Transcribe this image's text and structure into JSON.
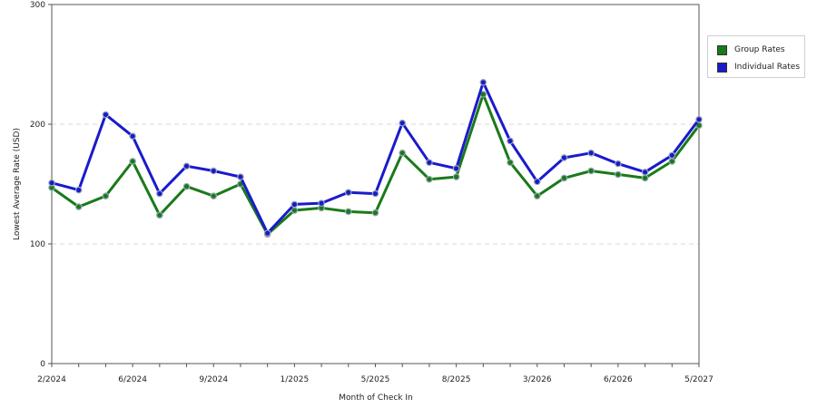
{
  "chart_data": {
    "type": "line",
    "xlabel": "Month of Check In",
    "ylabel": "Lowest Average Rate (USD)",
    "ylim": [
      0,
      300
    ],
    "y_ticks": [
      "0",
      "100",
      "200",
      "300"
    ],
    "x_tick_labels": [
      "2/2024",
      "6/2024",
      "9/2024",
      "1/2025",
      "5/2025",
      "8/2025",
      "3/2026",
      "6/2026",
      "5/2027"
    ],
    "grid": "horizontal dashed",
    "legend_position": "right",
    "series": [
      {
        "name": "Group Rates",
        "color": "#1a7a1a",
        "values": [
          147,
          131,
          140,
          169,
          124,
          148,
          140,
          150,
          108,
          128,
          130,
          127,
          126,
          176,
          154,
          156,
          225,
          168,
          140,
          155,
          161,
          158,
          155,
          169,
          199
        ]
      },
      {
        "name": "Individual Rates",
        "color": "#1a1acc",
        "values": [
          151,
          145,
          208,
          190,
          142,
          165,
          161,
          156,
          109,
          133,
          134,
          143,
          142,
          201,
          168,
          163,
          235,
          186,
          152,
          172,
          176,
          167,
          160,
          174,
          204
        ]
      }
    ]
  }
}
